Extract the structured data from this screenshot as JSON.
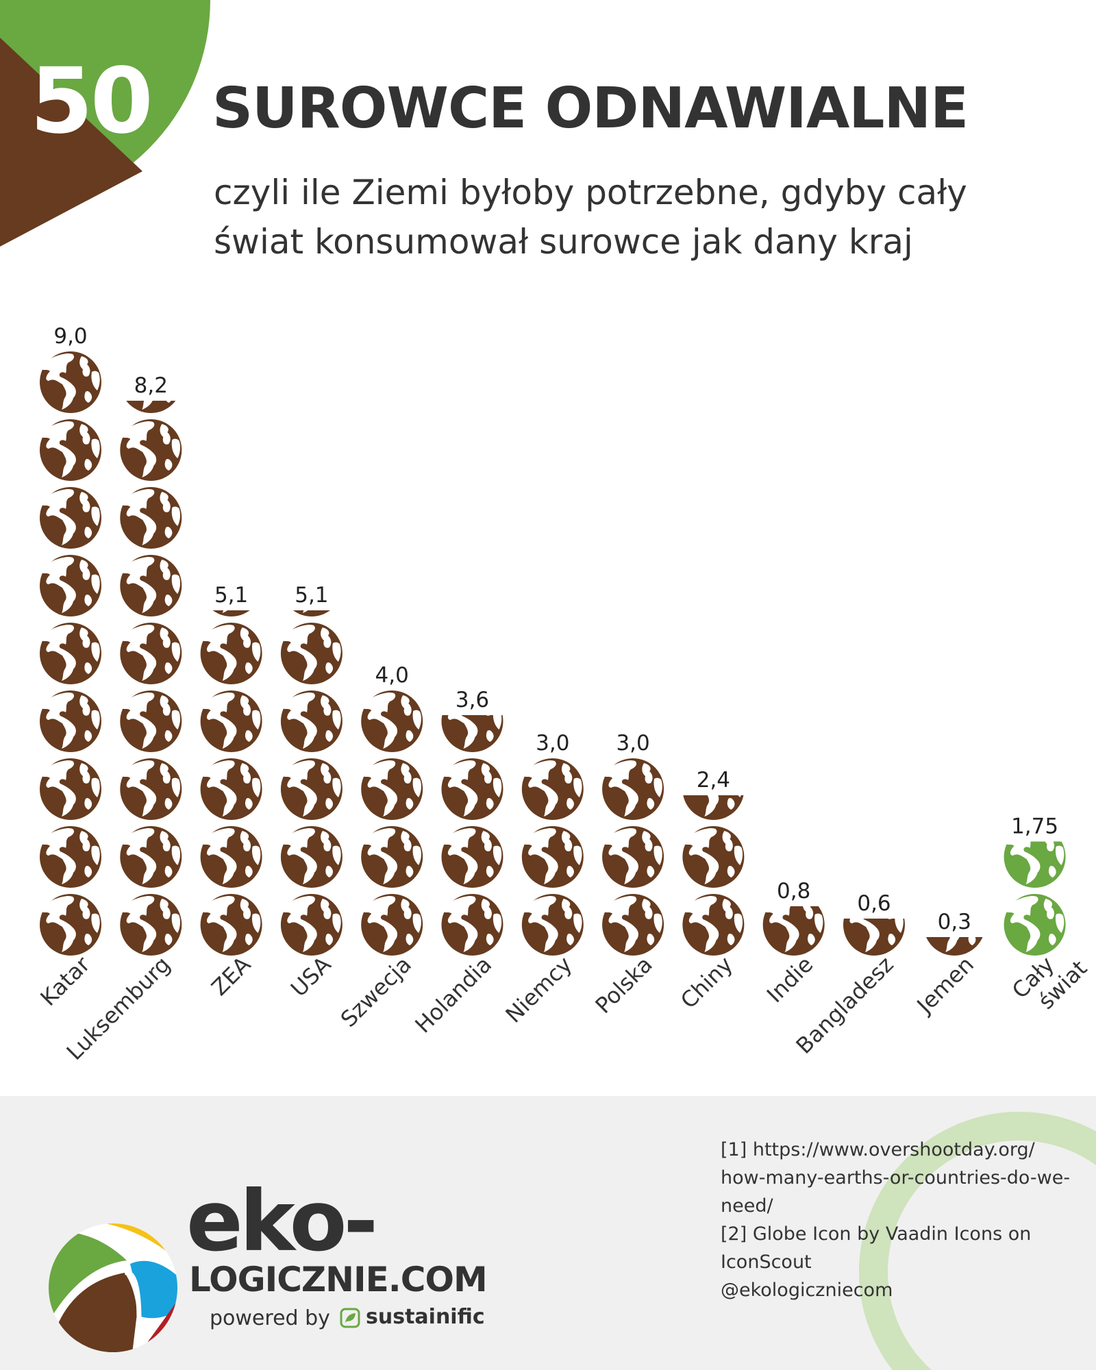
{
  "header": {
    "number": "50",
    "title": "SUROWCE ODNAWIALNE",
    "subtitle_line1": "czyli ile Ziemi byłoby potrzebne, gdyby cały",
    "subtitle_line2": "świat konsumował surowce jak dany kraj"
  },
  "colors": {
    "badge_green": "#6aa842",
    "badge_brown": "#663b1f",
    "globe_brown": "#663b1f",
    "globe_green": "#6aa842",
    "footer_bg": "#f0f0f0",
    "footer_ring": "#cfe3bd"
  },
  "chart_data": {
    "type": "bar",
    "icon": "globe-icon",
    "categories": [
      "Katar",
      "Luksemburg",
      "ZEA",
      "USA",
      "Szwecja",
      "Holandia",
      "Niemcy",
      "Polska",
      "Chiny",
      "Indie",
      "Bangladesz",
      "Jemen",
      "Cały świat"
    ],
    "values": [
      9.0,
      8.2,
      5.1,
      5.1,
      4.0,
      3.6,
      3.0,
      3.0,
      2.4,
      0.8,
      0.6,
      0.3,
      1.75
    ],
    "value_labels": [
      "9,0",
      "8,2",
      "5,1",
      "5,1",
      "4,0",
      "3,6",
      "3,0",
      "3,0",
      "2,4",
      "0,8",
      "0,6",
      "0,3",
      "1,75"
    ],
    "highlight_category": "Cały świat",
    "grid": false,
    "legend": false
  },
  "footer": {
    "brand_main": "eko-",
    "brand_sub": "LOGICZNIE.COM",
    "powered_by": "powered by",
    "partner": "sustainific",
    "sources": [
      "[1] https://www.overshootday.org/",
      "how-many-earths-or-countries-do-we-",
      "need/",
      "[2] Globe Icon by Vaadin Icons on",
      "IconScout",
      "@ekologiczniecom"
    ]
  }
}
